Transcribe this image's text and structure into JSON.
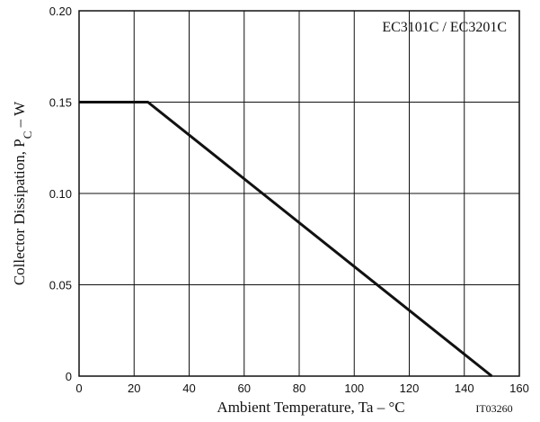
{
  "chart_data": {
    "type": "line",
    "title": "",
    "xlabel": "Ambient Temperature, Ta  –  °C",
    "ylabel_main": "Collector Dissipation, P",
    "ylabel_sub": "C",
    "ylabel_tail": "  –  W",
    "annotation": "EC3101C / EC3201C",
    "figure_code": "IT03260",
    "xlim": [
      0,
      160
    ],
    "ylim": [
      0,
      0.2
    ],
    "x_ticks": [
      0,
      20,
      40,
      60,
      80,
      100,
      120,
      140,
      160
    ],
    "x_tick_labels": [
      "0",
      "20",
      "40",
      "60",
      "80",
      "100",
      "120",
      "140",
      "160"
    ],
    "y_ticks": [
      0,
      0.05,
      0.1,
      0.15,
      0.2
    ],
    "y_tick_labels": [
      "0",
      "0.05",
      "0.10",
      "0.15",
      "0.20"
    ],
    "grid": true,
    "series": [
      {
        "x": [
          0,
          25,
          150
        ],
        "y": [
          0.15,
          0.15,
          0
        ],
        "color": "#111111"
      }
    ]
  }
}
